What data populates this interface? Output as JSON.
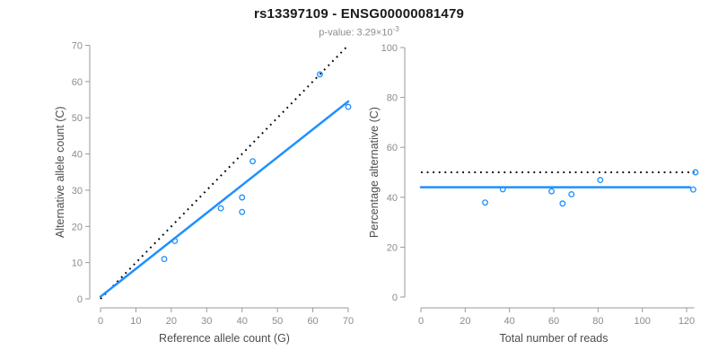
{
  "header": {
    "title": "rs13397109 - ENSG00000081479",
    "pvalue_text": "p-value: 3.29×10",
    "pvalue_exponent": "-3"
  },
  "colors": {
    "accent": "#1E90FF",
    "identity": "#000000",
    "axis": "#999999",
    "tick_text": "#8c8c8c",
    "axis_title_text": "#4d4d4d"
  },
  "chart_data": [
    {
      "type": "scatter",
      "name": "allele-count-scatter",
      "xlabel": "Reference allele count (G)",
      "ylabel": "Alternative allele count (C)",
      "xlim": [
        0,
        70
      ],
      "ylim": [
        0,
        70
      ],
      "xticks": [
        0,
        10,
        20,
        30,
        40,
        50,
        60,
        70
      ],
      "yticks": [
        0,
        10,
        20,
        30,
        40,
        50,
        60,
        70
      ],
      "grid": false,
      "points": [
        [
          18,
          11
        ],
        [
          21,
          16
        ],
        [
          34,
          25
        ],
        [
          40,
          24
        ],
        [
          40,
          28
        ],
        [
          43,
          38
        ],
        [
          62,
          62
        ],
        [
          70,
          53
        ]
      ],
      "lines": [
        {
          "name": "identity-line",
          "style": "dotted",
          "color": "#000000",
          "from": [
            0,
            0
          ],
          "to": [
            70,
            70
          ]
        },
        {
          "name": "regression-line",
          "style": "solid",
          "color": "#1E90FF",
          "from": [
            0,
            0.6
          ],
          "to": [
            70,
            54.5
          ]
        }
      ]
    },
    {
      "type": "scatter",
      "name": "percentage-scatter",
      "xlabel": "Total number of reads",
      "ylabel": "Percentage alternative (C)",
      "xlim": [
        0,
        120
      ],
      "ylim": [
        0,
        100
      ],
      "xticks": [
        0,
        20,
        40,
        60,
        80,
        100,
        120
      ],
      "yticks": [
        0,
        20,
        40,
        60,
        80,
        100
      ],
      "grid": false,
      "points": [
        [
          29,
          37.9
        ],
        [
          37,
          43.2
        ],
        [
          59,
          42.4
        ],
        [
          64,
          37.5
        ],
        [
          68,
          41.2
        ],
        [
          81,
          46.9
        ],
        [
          124,
          50.0
        ],
        [
          123,
          43.1
        ]
      ],
      "lines": [
        {
          "name": "expected-50pct-line",
          "style": "dotted",
          "color": "#000000",
          "from": [
            0,
            50
          ],
          "to": [
            123.5,
            50
          ]
        },
        {
          "name": "mean-percentage-line",
          "style": "solid",
          "color": "#1E90FF",
          "from": [
            0,
            44
          ],
          "to": [
            121.5,
            44
          ]
        }
      ]
    }
  ]
}
